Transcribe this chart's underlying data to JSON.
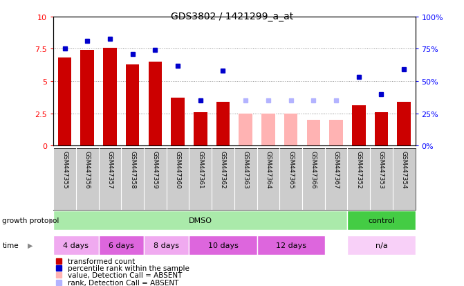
{
  "title": "GDS3802 / 1421299_a_at",
  "samples": [
    "GSM447355",
    "GSM447356",
    "GSM447357",
    "GSM447358",
    "GSM447359",
    "GSM447360",
    "GSM447361",
    "GSM447362",
    "GSM447363",
    "GSM447364",
    "GSM447365",
    "GSM447366",
    "GSM447367",
    "GSM447352",
    "GSM447353",
    "GSM447354"
  ],
  "bar_values": [
    6.8,
    7.4,
    7.6,
    6.3,
    6.5,
    3.7,
    2.6,
    3.4,
    2.5,
    2.5,
    2.5,
    2.0,
    2.0,
    3.1,
    2.6,
    3.4
  ],
  "bar_absent": [
    false,
    false,
    false,
    false,
    false,
    false,
    false,
    false,
    true,
    true,
    true,
    true,
    true,
    false,
    false,
    false
  ],
  "dot_values": [
    7.5,
    8.1,
    8.3,
    7.1,
    7.4,
    6.2,
    3.5,
    5.8,
    3.5,
    3.5,
    3.5,
    3.5,
    3.5,
    5.3,
    4.0,
    5.9
  ],
  "dot_absent": [
    false,
    false,
    false,
    false,
    false,
    false,
    false,
    false,
    true,
    true,
    true,
    true,
    true,
    false,
    false,
    false
  ],
  "ylim": [
    0,
    10
  ],
  "yticks": [
    0,
    2.5,
    5.0,
    7.5,
    10
  ],
  "ytick_labels": [
    "0",
    "2.5",
    "5",
    "7.5",
    "10"
  ],
  "y2tick_labels": [
    "0%",
    "25%",
    "50%",
    "75%",
    "100%"
  ],
  "bar_color_present": "#cc0000",
  "bar_color_absent": "#ffb3b3",
  "dot_color_present": "#0000cc",
  "dot_color_absent": "#b3b3ff",
  "bar_width": 0.6,
  "growth_protocol_groups": [
    {
      "text": "DMSO",
      "start": 0,
      "end": 12,
      "color": "#aaeaaa"
    },
    {
      "text": "control",
      "start": 13,
      "end": 15,
      "color": "#44cc44"
    }
  ],
  "time_groups": [
    {
      "text": "4 days",
      "start": 0,
      "end": 1,
      "color": "#f0aaf0"
    },
    {
      "text": "6 days",
      "start": 2,
      "end": 3,
      "color": "#dd66dd"
    },
    {
      "text": "8 days",
      "start": 4,
      "end": 5,
      "color": "#f0aaf0"
    },
    {
      "text": "10 days",
      "start": 6,
      "end": 8,
      "color": "#dd66dd"
    },
    {
      "text": "12 days",
      "start": 9,
      "end": 11,
      "color": "#dd66dd"
    },
    {
      "text": "n/a",
      "start": 13,
      "end": 15,
      "color": "#f8d0f8"
    }
  ],
  "legend_items": [
    {
      "label": "transformed count",
      "color": "#cc0000"
    },
    {
      "label": "percentile rank within the sample",
      "color": "#0000cc"
    },
    {
      "label": "value, Detection Call = ABSENT",
      "color": "#ffb3b3"
    },
    {
      "label": "rank, Detection Call = ABSENT",
      "color": "#b3b3ff"
    }
  ],
  "gp_label": "growth protocol",
  "time_label": "time",
  "background_color": "#ffffff",
  "xlabel_bg": "#cccccc",
  "border_color": "#000000"
}
